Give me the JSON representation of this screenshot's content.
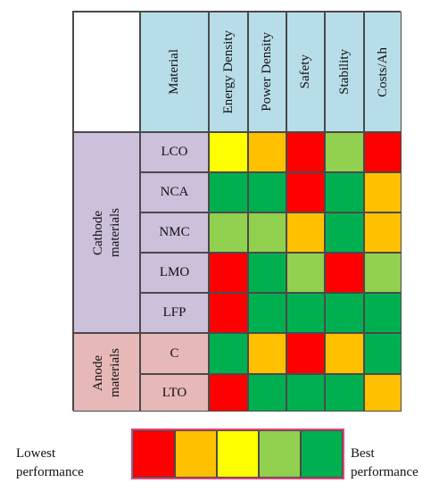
{
  "colors": {
    "level_1": "#ff0000",
    "level_2": "#ffc000",
    "level_3": "#ffff00",
    "level_4": "#92d050",
    "level_5": "#00b050",
    "header_bg": "#b7dde8",
    "cathode_bg": "#ccc0da",
    "anode_bg": "#e6b9b8"
  },
  "table": {
    "material_header": "Material",
    "columns": [
      "Energy Density",
      "Power Density",
      "Safety",
      "Stability",
      "Costs/Ah"
    ],
    "groups": [
      {
        "label": "Cathode\nmaterials",
        "type": "cathode"
      },
      {
        "label": "Anode\nmaterials",
        "type": "anode"
      }
    ],
    "rows": [
      {
        "material": "LCO",
        "group": "cathode",
        "scores": [
          3,
          2,
          1,
          4,
          1
        ]
      },
      {
        "material": "NCA",
        "group": "cathode",
        "scores": [
          5,
          5,
          1,
          5,
          2
        ]
      },
      {
        "material": "NMC",
        "group": "cathode",
        "scores": [
          4,
          4,
          2,
          5,
          2
        ]
      },
      {
        "material": "LMO",
        "group": "cathode",
        "scores": [
          1,
          5,
          4,
          1,
          4
        ]
      },
      {
        "material": "LFP",
        "group": "cathode",
        "scores": [
          1,
          5,
          5,
          5,
          5
        ]
      },
      {
        "material": "C",
        "group": "anode",
        "scores": [
          5,
          2,
          1,
          2,
          5
        ]
      },
      {
        "material": "LTO",
        "group": "anode",
        "scores": [
          1,
          5,
          5,
          5,
          2
        ]
      }
    ]
  },
  "legend": {
    "lowest_label": "Lowest\nperformance",
    "best_label": "Best\nperformance",
    "scale": [
      1,
      2,
      3,
      4,
      5
    ]
  }
}
